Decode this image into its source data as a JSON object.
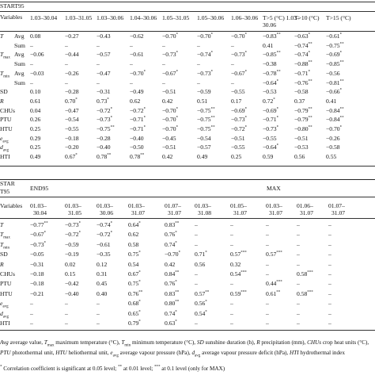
{
  "table1": {
    "label": "START95",
    "header_variables": "Variables",
    "columns": [
      "1.03–30.04",
      "1.03–31.05",
      "1.03–30.06",
      "1.04–30.06",
      "1.05–31.05",
      "1.05–30.06",
      "1.06–30.06",
      "T>5 (°C) 1.03–30.06",
      "T>10 (°C)",
      "T>15 (°C)"
    ],
    "rows": [
      {
        "var": "T",
        "sub": "Avg",
        "values": [
          "0.08",
          "−0.27",
          "−0.43",
          "−0.62",
          "−0.70*",
          "−0.70*",
          "−0.70*",
          "−0.83**",
          "−0.63*",
          "−0.61*"
        ]
      },
      {
        "var": "",
        "sub": "Sum",
        "values": [
          "–",
          "–",
          "–",
          "–",
          "–",
          "–",
          "–",
          "0.41",
          "−0.74**",
          "−0.75**"
        ]
      },
      {
        "var": "Tmax",
        "sub": "Avg",
        "values": [
          "−0.06",
          "−0.44",
          "−0.57",
          "−0.61",
          "−0.73*",
          "−0.74*",
          "−0.73*",
          "−0.85**",
          "−0.74*",
          "−0.69*"
        ]
      },
      {
        "var": "",
        "sub": "Sum",
        "values": [
          "–",
          "–",
          "–",
          "–",
          "–",
          "–",
          "–",
          "−0.38",
          "−0.88**",
          "−0.85**"
        ]
      },
      {
        "var": "Tmin",
        "sub": "Avg",
        "values": [
          "−0.03",
          "−0.26",
          "−0.47",
          "−0.70*",
          "−0.67*",
          "−0.73*",
          "−0.67*",
          "−0.78**",
          "−0.71*",
          "−0.56"
        ]
      },
      {
        "var": "",
        "sub": "Sum",
        "values": [
          "–",
          "–",
          "–",
          "–",
          "–",
          "–",
          "–",
          "−0.64*",
          "−0.76**",
          "−0.81**"
        ]
      },
      {
        "var": "SD",
        "sub": "",
        "values": [
          "0.10",
          "−0.28",
          "−0.31",
          "−0.49",
          "−0.51",
          "−0.59",
          "−0.55",
          "−0.53",
          "−0.58",
          "−0.66*"
        ]
      },
      {
        "var": "R",
        "sub": "",
        "values": [
          "0.61",
          "0.70*",
          "0.73*",
          "0.62",
          "0.42",
          "0.51",
          "0.17",
          "0.72*",
          "0.37",
          "0.41"
        ]
      },
      {
        "var": "CHUs",
        "sub": "",
        "values": [
          "0.04",
          "−0.47",
          "−0.72*",
          "−0.72*",
          "−0.70*",
          "−0.75**",
          "−0.69*",
          "−0.69*",
          "−0.79**",
          "−0.84**"
        ]
      },
      {
        "var": "PTU",
        "sub": "",
        "values": [
          "0.26",
          "−0.54",
          "−0.73*",
          "−0.71*",
          "−0.70*",
          "−0.75**",
          "−0.73*",
          "−0.71*",
          "−0.79**",
          "−0.84**"
        ]
      },
      {
        "var": "HTU",
        "sub": "",
        "values": [
          "0.25",
          "−0.55",
          "−0.75**",
          "−0.71*",
          "−0.70*",
          "−0.75**",
          "−0.72*",
          "−0.73*",
          "−0.80**",
          "−0.70*"
        ]
      },
      {
        "var": "eavg",
        "sub": "",
        "values": [
          "0.29",
          "−0.18",
          "−0.28",
          "−0.40",
          "−0.45",
          "−0.54",
          "−0.51",
          "−0.55",
          "−0.51",
          "−0.26"
        ]
      },
      {
        "var": "davg",
        "sub": "",
        "values": [
          "0.25",
          "−0.20",
          "−0.40",
          "−0.50",
          "−0.51",
          "−0.57",
          "−0.55",
          "−0.64*",
          "−0.53",
          "−0.58"
        ]
      },
      {
        "var": "HTI",
        "sub": "",
        "values": [
          "0.49",
          "0.67*",
          "0.78**",
          "0.78**",
          "0.42",
          "0.49",
          "0.25",
          "0.59",
          "0.56",
          "0.55"
        ]
      }
    ]
  },
  "table2": {
    "label_top": "STAR",
    "label_bottom": "T95",
    "group_end": "END95",
    "group_max": "MAX",
    "header_variables": "Variables",
    "columns": [
      [
        "01.03–",
        "30.04"
      ],
      [
        "01.03–",
        "31.05"
      ],
      [
        "01.03–",
        "30.06"
      ],
      [
        "01.03–",
        "31.07"
      ],
      [
        "01.07–",
        "31.07"
      ],
      [
        "01.03–",
        "31.08"
      ],
      [
        "01.05–",
        "31.07"
      ],
      [
        "01.03–",
        "31.07"
      ],
      [
        "01.06–",
        "31.07"
      ],
      [
        "01.07–",
        "31.07"
      ]
    ],
    "rows": [
      {
        "var": "T",
        "values": [
          "−0.77**",
          "−0.73*",
          "−0.74*",
          "0.64*",
          "0.83**",
          "–",
          "–",
          "–",
          "–",
          "–"
        ]
      },
      {
        "var": "Tmax",
        "values": [
          "−0.67*",
          "−0.72*",
          "−0.72*",
          "0.62",
          "0.76*",
          "–",
          "–",
          "–",
          "–",
          "–"
        ]
      },
      {
        "var": "Tmin",
        "values": [
          "−0.73*",
          "−0.59",
          "−0.61",
          "0.58",
          "0.74*",
          "–",
          "–",
          "–",
          "–",
          "–"
        ]
      },
      {
        "var": "SD",
        "values": [
          "−0.05",
          "−0.19",
          "−0.35",
          "0.75*",
          "−0.70*",
          "0.71*",
          "0.57***",
          "0.57***",
          "–",
          "–"
        ]
      },
      {
        "var": "R",
        "values": [
          "−0.31",
          "0.02",
          "0.12",
          "0.54",
          "0.42",
          "0.56",
          "0.32",
          "–",
          "–",
          "–"
        ]
      },
      {
        "var": "CHUs",
        "values": [
          "−0.18",
          "0.15",
          "0.31",
          "0.67*",
          "0.84**",
          "–",
          "0.54***",
          "–",
          "0.58***",
          "–"
        ]
      },
      {
        "var": "PTU",
        "values": [
          "−0.18",
          "−0.42",
          "0.45",
          "0.75*",
          "0.76*",
          "–",
          "–",
          "0.44***",
          "–",
          "–"
        ]
      },
      {
        "var": "HTU",
        "values": [
          "−0.21",
          "−0.40",
          "0.40",
          "0.76**",
          "0.83**",
          "0.57**",
          "0.59***",
          "0.61**",
          "0.58***",
          "–"
        ]
      },
      {
        "var": "eavg",
        "values": [
          "–",
          "–",
          "–",
          "0.68*",
          "0.80**",
          "0.56*",
          "–",
          "–",
          "–",
          "–"
        ]
      },
      {
        "var": "davg",
        "values": [
          "–",
          "–",
          "–",
          "0.65*",
          "0.74*",
          "0.54*",
          "–",
          "–",
          "–",
          "–"
        ]
      },
      {
        "var": "HTI",
        "values": [
          "–",
          "–",
          "–",
          "0.79*",
          "0.63*",
          "–",
          "–",
          "–",
          "–",
          "–"
        ]
      }
    ]
  },
  "footnote1": "Avg average value, Tmax maximum temperature (°C), Tmin minimum temperature (°C), SD sunshine duration (h), R precipitation (mm), CHUs crop heat units (°C), PTU photothermal unit, HTU heliothermal unit, eavg average vapour pressure (hPa), davg average vapour pressure deficit (hPa), HTI hydrothermal index",
  "footnote2": "* Correlation coefficient is significant at 0.05 level; ** at 0.01 level; *** at 0.1 level (only for MAX)"
}
